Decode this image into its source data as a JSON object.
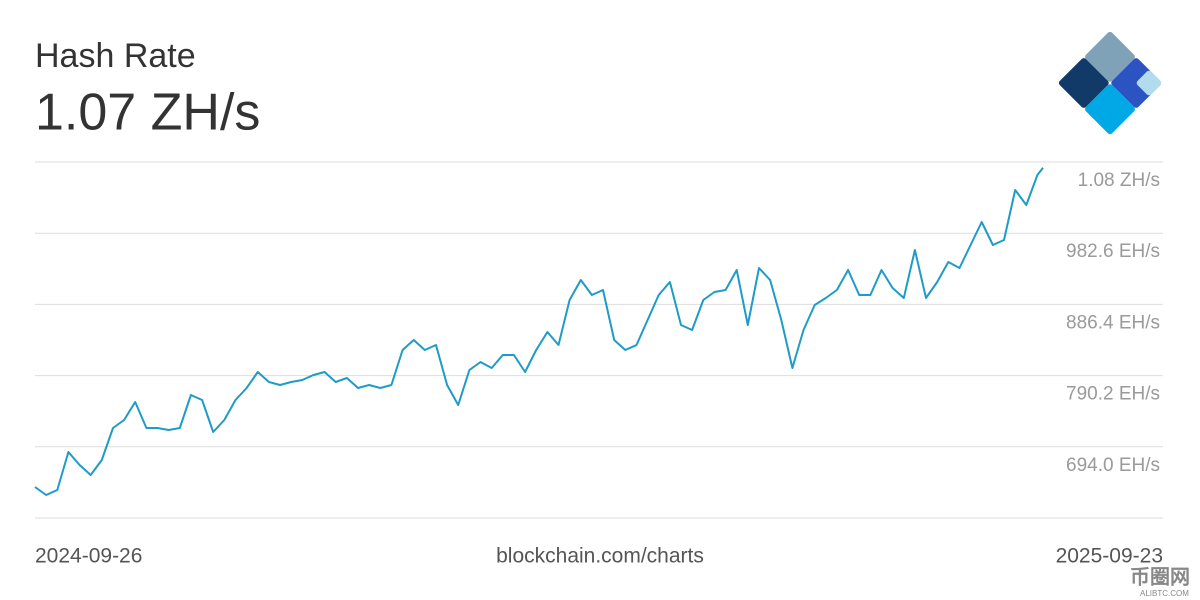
{
  "chart_data": {
    "type": "line",
    "title": "Hash Rate",
    "headline": "1.07 ZH/s",
    "source": "blockchain.com/charts",
    "watermark": {
      "name": "币圈网",
      "site": "ALIBTC.COM"
    },
    "color": "#1f9bc9",
    "grid": true,
    "ylim": [
      597.8,
      1078.8
    ],
    "yticks": [
      {
        "value": 694.0,
        "label": "694.0 EH/s"
      },
      {
        "value": 790.2,
        "label": "790.2 EH/s"
      },
      {
        "value": 886.4,
        "label": "886.4 EH/s"
      },
      {
        "value": 982.6,
        "label": "982.6 EH/s"
      },
      {
        "value": 1078.8,
        "label": "1.08 ZH/s"
      }
    ],
    "x": [
      "2024-09-26",
      "2024-09-30",
      "2024-10-04",
      "2024-10-08",
      "2024-10-12",
      "2024-10-16",
      "2024-10-20",
      "2024-10-24",
      "2024-10-28",
      "2024-11-01",
      "2024-11-05",
      "2024-11-09",
      "2024-11-13",
      "2024-11-17",
      "2024-11-21",
      "2024-11-25",
      "2024-11-29",
      "2024-12-03",
      "2024-12-07",
      "2024-12-11",
      "2024-12-15",
      "2024-12-19",
      "2024-12-23",
      "2024-12-27",
      "2024-12-31",
      "2025-01-04",
      "2025-01-08",
      "2025-01-12",
      "2025-01-16",
      "2025-01-20",
      "2025-01-24",
      "2025-01-28",
      "2025-02-01",
      "2025-02-05",
      "2025-02-09",
      "2025-02-13",
      "2025-02-17",
      "2025-02-21",
      "2025-02-25",
      "2025-03-01",
      "2025-03-05",
      "2025-03-09",
      "2025-03-13",
      "2025-03-17",
      "2025-03-21",
      "2025-03-25",
      "2025-03-29",
      "2025-04-02",
      "2025-04-06",
      "2025-04-10",
      "2025-04-14",
      "2025-04-18",
      "2025-04-22",
      "2025-04-26",
      "2025-04-30",
      "2025-05-04",
      "2025-05-08",
      "2025-05-12",
      "2025-05-16",
      "2025-05-20",
      "2025-05-24",
      "2025-05-28",
      "2025-06-01",
      "2025-06-05",
      "2025-06-09",
      "2025-06-13",
      "2025-06-17",
      "2025-06-21",
      "2025-06-25",
      "2025-06-29",
      "2025-07-03",
      "2025-07-07",
      "2025-07-11",
      "2025-07-15",
      "2025-07-19",
      "2025-07-23",
      "2025-07-27",
      "2025-07-31",
      "2025-08-04",
      "2025-08-08",
      "2025-08-12",
      "2025-08-16",
      "2025-08-20",
      "2025-08-24",
      "2025-08-28",
      "2025-09-01",
      "2025-09-05",
      "2025-09-09",
      "2025-09-13",
      "2025-09-17",
      "2025-09-21",
      "2025-09-23"
    ],
    "values": [
      639.7,
      628.9,
      635.6,
      687.0,
      669.4,
      655.9,
      676.2,
      719.4,
      730.2,
      754.5,
      719.4,
      719.4,
      716.7,
      719.4,
      764.0,
      757.2,
      714.0,
      730.2,
      757.2,
      773.4,
      795.1,
      781.5,
      777.5,
      781.5,
      784.2,
      791.0,
      795.1,
      781.5,
      787.0,
      773.4,
      777.5,
      773.4,
      777.5,
      824.8,
      838.3,
      824.8,
      831.5,
      777.5,
      750.5,
      797.8,
      808.6,
      800.5,
      818.0,
      818.0,
      795.1,
      824.8,
      849.1,
      831.5,
      892.3,
      919.4,
      899.1,
      905.8,
      838.3,
      824.8,
      831.5,
      865.3,
      899.1,
      916.7,
      858.6,
      851.8,
      892.3,
      903.1,
      905.8,
      932.9,
      858.6,
      935.6,
      919.4,
      865.3,
      800.5,
      851.8,
      885.6,
      895.0,
      905.8,
      932.9,
      899.1,
      899.1,
      932.9,
      908.6,
      895.0,
      959.9,
      895.0,
      916.7,
      943.7,
      935.6,
      966.6,
      997.7,
      966.6,
      973.4,
      1041.0,
      1020.7,
      1061.2,
      1071.0
    ]
  }
}
